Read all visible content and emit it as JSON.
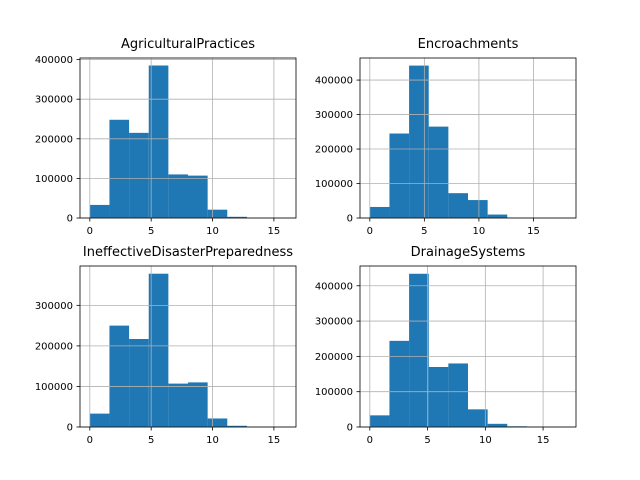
{
  "chart_data": [
    {
      "type": "bar",
      "subtype": "histogram",
      "title": "AgriculturalPractices",
      "bins": [
        [
          0.0,
          1.6
        ],
        [
          1.6,
          3.2
        ],
        [
          3.2,
          4.8
        ],
        [
          4.8,
          6.4
        ],
        [
          6.4,
          8.0
        ],
        [
          8.0,
          9.6
        ],
        [
          9.6,
          11.2
        ],
        [
          11.2,
          12.8
        ],
        [
          12.8,
          14.4
        ],
        [
          14.4,
          16.0
        ]
      ],
      "values": [
        33000,
        248000,
        215000,
        385000,
        110000,
        107000,
        21000,
        3000,
        400,
        100
      ],
      "xlim": [
        -0.8,
        16.8
      ],
      "ylim": [
        0,
        404000
      ],
      "xticks": [
        0,
        5,
        10,
        15
      ],
      "xtick_labels": [
        "0",
        "5",
        "10",
        "15"
      ],
      "yticks": [
        0,
        100000,
        200000,
        300000,
        400000
      ],
      "ytick_labels": [
        "0",
        "100000",
        "200000",
        "300000",
        "400000"
      ],
      "grid": true,
      "color": "#1f77b4"
    },
    {
      "type": "bar",
      "subtype": "histogram",
      "title": "Encroachments",
      "bins": [
        [
          0.0,
          1.8
        ],
        [
          1.8,
          3.6
        ],
        [
          3.6,
          5.4
        ],
        [
          5.4,
          7.2
        ],
        [
          7.2,
          9.0
        ],
        [
          9.0,
          10.8
        ],
        [
          10.8,
          12.6
        ],
        [
          12.6,
          14.4
        ],
        [
          14.4,
          16.2
        ],
        [
          16.2,
          18.0
        ]
      ],
      "values": [
        32000,
        245000,
        442000,
        265000,
        72000,
        52000,
        10000,
        1000,
        200,
        50
      ],
      "xlim": [
        -0.9,
        18.9
      ],
      "ylim": [
        0,
        464000
      ],
      "xticks": [
        0,
        5,
        10,
        15
      ],
      "xtick_labels": [
        "0",
        "5",
        "10",
        "15"
      ],
      "yticks": [
        0,
        100000,
        200000,
        300000,
        400000
      ],
      "ytick_labels": [
        "0",
        "100000",
        "200000",
        "300000",
        "400000"
      ],
      "grid": true,
      "color": "#1f77b4"
    },
    {
      "type": "bar",
      "subtype": "histogram",
      "title": "IneffectiveDisasterPreparedness",
      "bins": [
        [
          0.0,
          1.6
        ],
        [
          1.6,
          3.2
        ],
        [
          3.2,
          4.8
        ],
        [
          4.8,
          6.4
        ],
        [
          6.4,
          8.0
        ],
        [
          8.0,
          9.6
        ],
        [
          9.6,
          11.2
        ],
        [
          11.2,
          12.8
        ],
        [
          12.8,
          14.4
        ],
        [
          14.4,
          16.0
        ]
      ],
      "values": [
        33000,
        250000,
        217000,
        378000,
        107000,
        110000,
        21000,
        3000,
        400,
        100
      ],
      "xlim": [
        -0.8,
        16.8
      ],
      "ylim": [
        0,
        397000
      ],
      "xticks": [
        0,
        5,
        10,
        15
      ],
      "xtick_labels": [
        "0",
        "5",
        "10",
        "15"
      ],
      "yticks": [
        0,
        100000,
        200000,
        300000
      ],
      "ytick_labels": [
        "0",
        "100000",
        "200000",
        "300000"
      ],
      "grid": true,
      "color": "#1f77b4"
    },
    {
      "type": "bar",
      "subtype": "histogram",
      "title": "DrainageSystems",
      "bins": [
        [
          0.0,
          1.7
        ],
        [
          1.7,
          3.4
        ],
        [
          3.4,
          5.1
        ],
        [
          5.1,
          6.8
        ],
        [
          6.8,
          8.5
        ],
        [
          8.5,
          10.2
        ],
        [
          10.2,
          11.9
        ],
        [
          11.9,
          13.6
        ],
        [
          13.6,
          15.3
        ],
        [
          15.3,
          17.0
        ]
      ],
      "values": [
        33000,
        244000,
        434000,
        170000,
        180000,
        50000,
        9000,
        2000,
        300,
        50
      ],
      "xlim": [
        -0.85,
        17.85
      ],
      "ylim": [
        0,
        456000
      ],
      "xticks": [
        0,
        5,
        10,
        15
      ],
      "xtick_labels": [
        "0",
        "5",
        "10",
        "15"
      ],
      "yticks": [
        0,
        100000,
        200000,
        300000,
        400000
      ],
      "ytick_labels": [
        "0",
        "100000",
        "200000",
        "300000",
        "400000"
      ],
      "grid": true,
      "color": "#1f77b4"
    }
  ]
}
